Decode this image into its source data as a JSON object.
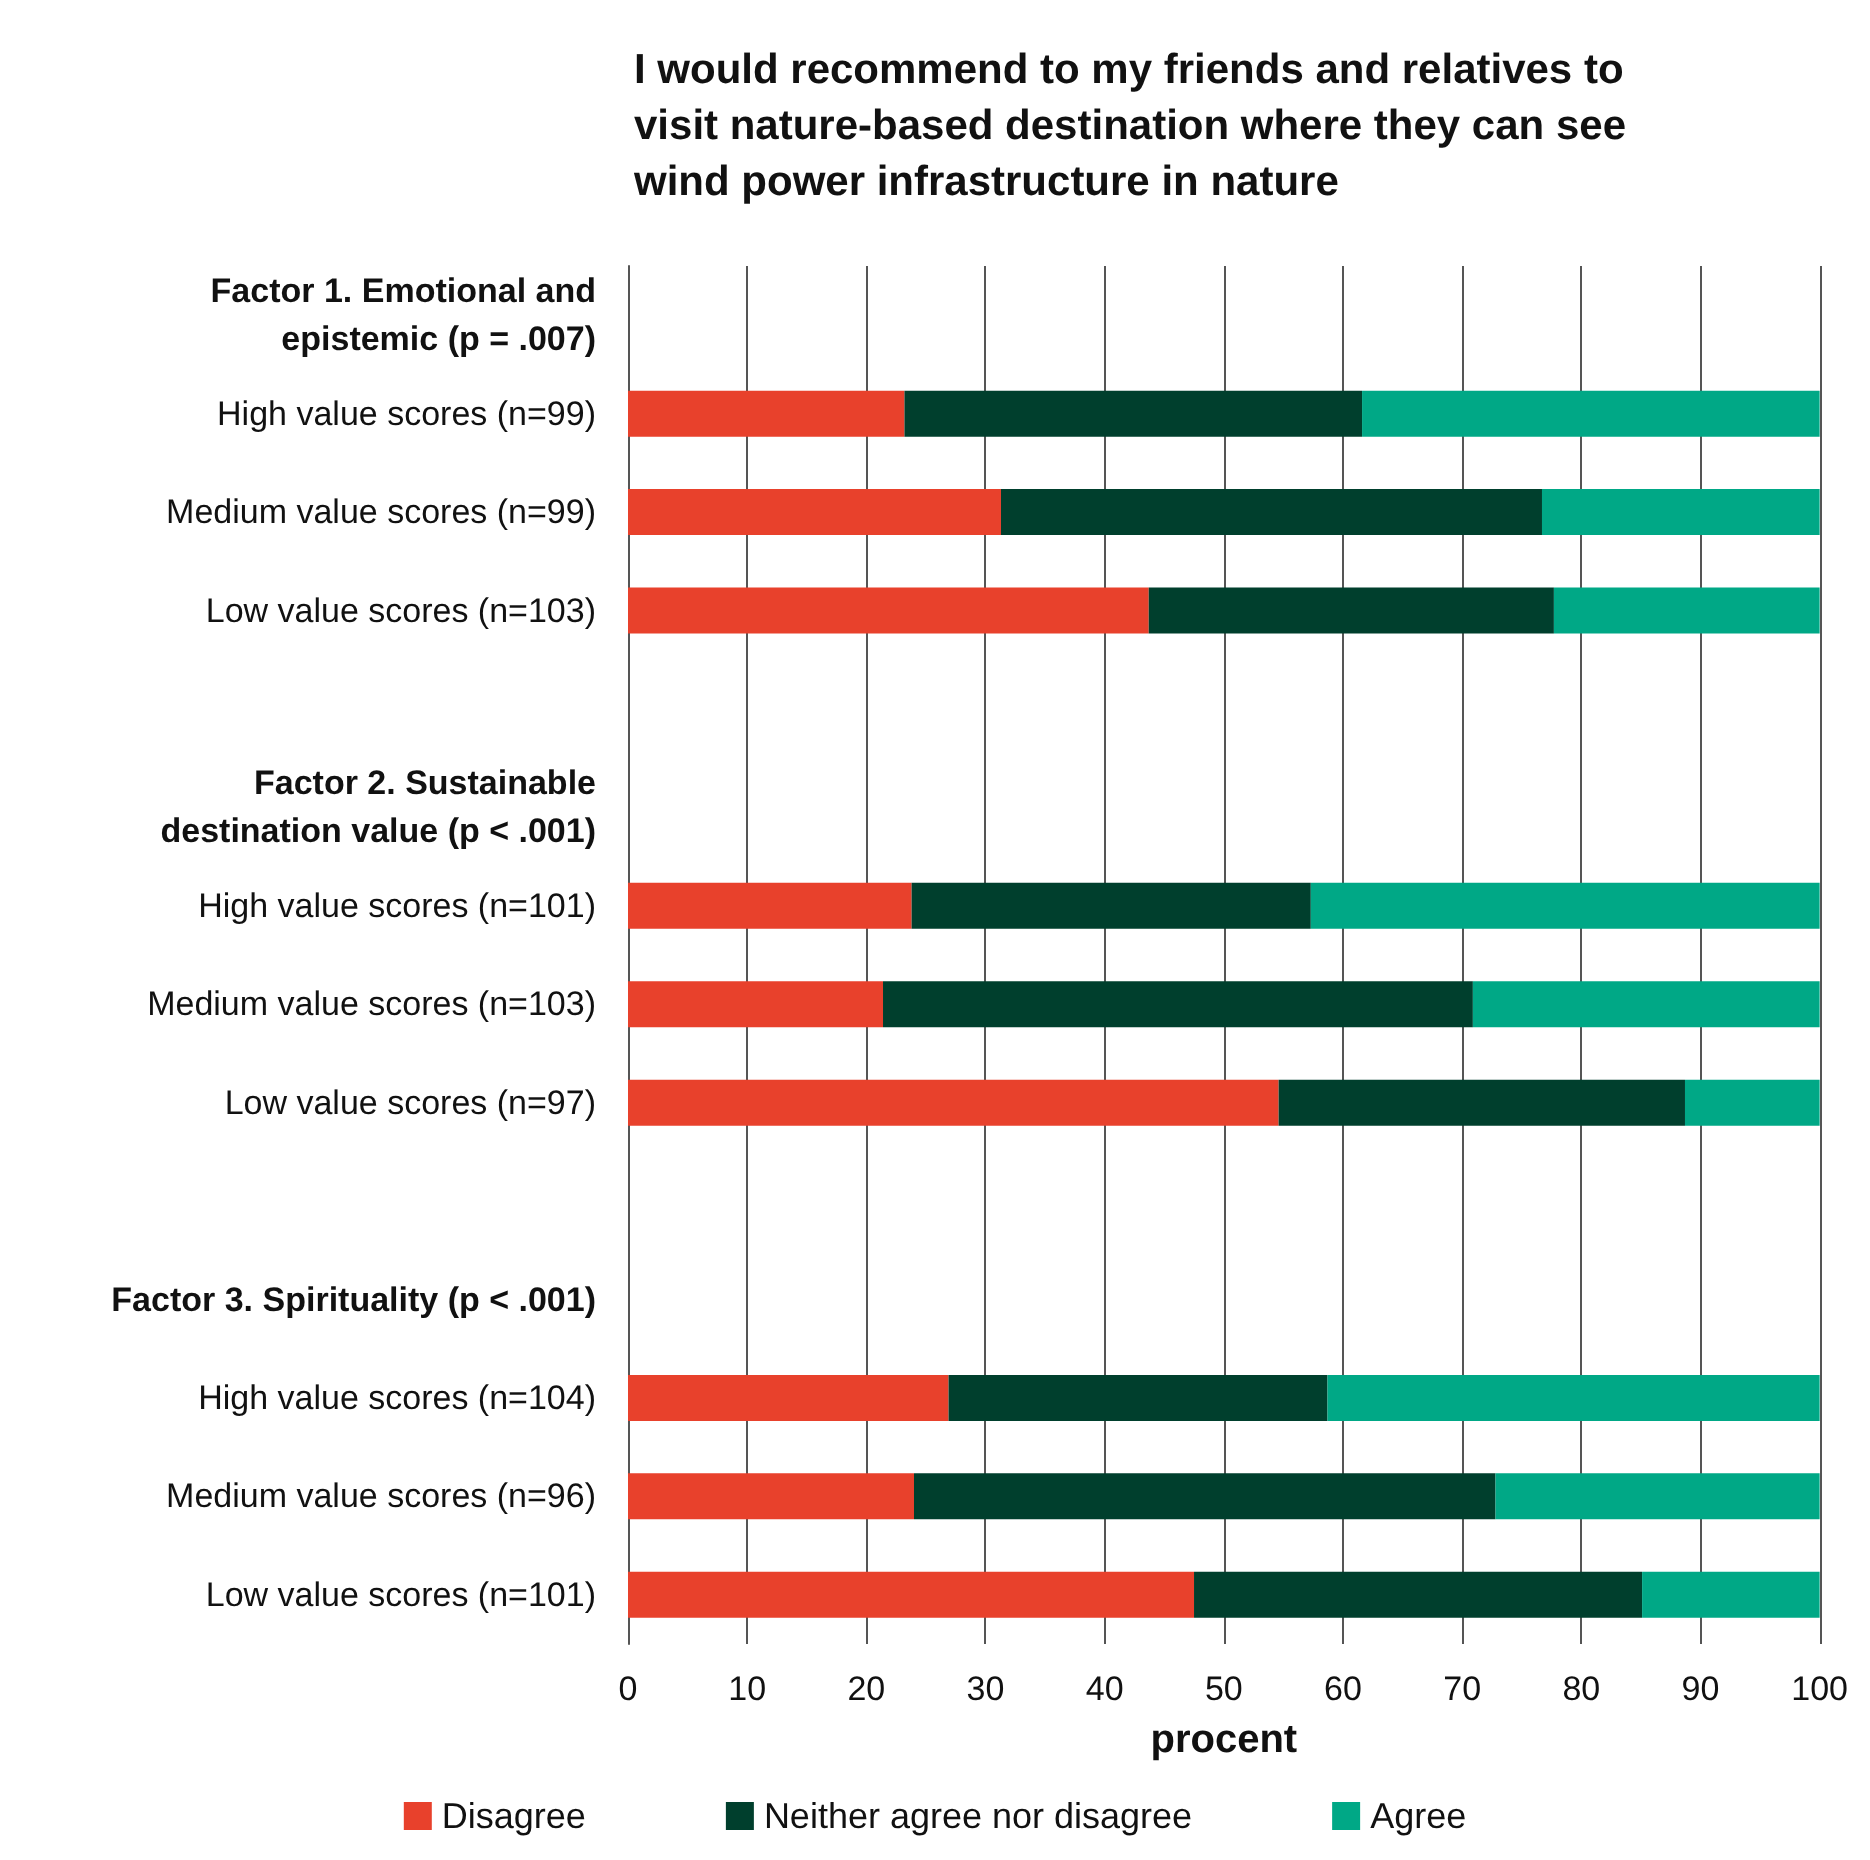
{
  "chart_data": {
    "type": "bar",
    "orientation": "horizontal",
    "stacked": true,
    "title": "I would recommend to my friends and relatives to\nvisit nature-based destination where they can see\nwind power infrastructure in nature",
    "xlabel": "procent",
    "categories": [
      "Factor 1. Emotional and\nepistemic (p = .007)",
      "High value scores (n=99)",
      "Medium value scores (n=99)",
      "Low value scores (n=103)",
      null,
      "Factor 2. Sustainable\ndestination value (p < .001)",
      "High value scores (n=101)",
      "Medium value scores (n=103)",
      "Low value scores (n=97)",
      null,
      "Factor 3. Spirituality (p < .001)",
      "High value scores (n=104)",
      "Medium value scores (n=96)",
      "Low value scores (n=101)"
    ],
    "series": [
      {
        "name": "Disagree",
        "color": "#e8412c",
        "values": [
          null,
          23.2,
          31.3,
          43.7,
          null,
          null,
          23.8,
          21.4,
          54.6,
          null,
          null,
          26.9,
          24.0,
          47.5
        ]
      },
      {
        "name": "Neither agree nor disagree",
        "color": "#003f2d",
        "values": [
          null,
          38.4,
          45.4,
          34.0,
          null,
          null,
          33.5,
          49.5,
          34.1,
          null,
          null,
          31.8,
          48.8,
          37.6
        ]
      },
      {
        "name": "Agree",
        "color": "#00a886",
        "values": [
          null,
          38.4,
          23.3,
          22.3,
          null,
          null,
          42.7,
          29.1,
          11.3,
          null,
          null,
          41.3,
          27.2,
          14.9
        ]
      }
    ],
    "xlim": [
      0,
      100
    ],
    "xticks": [
      0,
      10,
      20,
      30,
      40,
      50,
      60,
      70,
      80,
      90,
      100
    ],
    "grid": "x",
    "legend": "bottom"
  }
}
